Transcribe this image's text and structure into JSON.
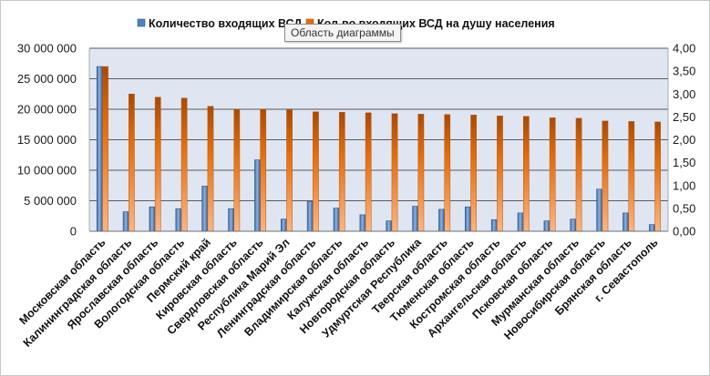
{
  "chart_data": {
    "type": "bar",
    "categories": [
      "Московская область",
      "Калининградская область",
      "Ярославская область",
      "Вологодская область",
      "Пермский край",
      "Кировская область",
      "Свердловская область",
      "Республика Марий Эл",
      "Ленинградская область",
      "Владимирская область",
      "Калужская область",
      "Новгородская область",
      "Удмуртская Республика",
      "Тверская область",
      "Тюменская область",
      "Костромская область",
      "Архангельская область",
      "Псковская область",
      "Мурманская область",
      "Новосибирская область",
      "Брянская область",
      "г. Севастополь"
    ],
    "series": [
      {
        "name": "Количество входящих ВСД",
        "axis": "left",
        "color": "#4f81bd",
        "values": [
          27000000,
          3200000,
          4000000,
          3700000,
          7400000,
          3700000,
          11700000,
          2000000,
          4900000,
          3800000,
          2700000,
          1700000,
          4100000,
          3600000,
          4000000,
          1900000,
          3000000,
          1700000,
          2000000,
          6900000,
          3000000,
          1100000
        ]
      },
      {
        "name": "Кол-во входящих ВСД на душу населения",
        "axis": "right",
        "color": "#e46c0a",
        "values": [
          3.6,
          3.0,
          2.93,
          2.91,
          2.73,
          2.67,
          2.67,
          2.66,
          2.61,
          2.6,
          2.59,
          2.57,
          2.56,
          2.55,
          2.54,
          2.52,
          2.51,
          2.48,
          2.47,
          2.41,
          2.4,
          2.39
        ]
      }
    ],
    "y_left": {
      "range": [
        0,
        30000000
      ],
      "ticks": [
        0,
        5000000,
        10000000,
        15000000,
        20000000,
        25000000,
        30000000
      ],
      "tick_labels": [
        "0",
        "5 000 000",
        "10 000 000",
        "15 000 000",
        "20 000 000",
        "25 000 000",
        "30 000 000"
      ]
    },
    "y_right": {
      "range": [
        0,
        4
      ],
      "ticks": [
        0,
        0.5,
        1,
        1.5,
        2,
        2.5,
        3,
        3.5,
        4
      ],
      "tick_labels": [
        "0,00",
        "0,50",
        "1,00",
        "1,50",
        "2,00",
        "2,50",
        "3,00",
        "3,50",
        "4,00"
      ]
    },
    "grid": true,
    "legend": "top",
    "plot_background": "#dfe6f2"
  },
  "tooltip": "Область диаграммы"
}
